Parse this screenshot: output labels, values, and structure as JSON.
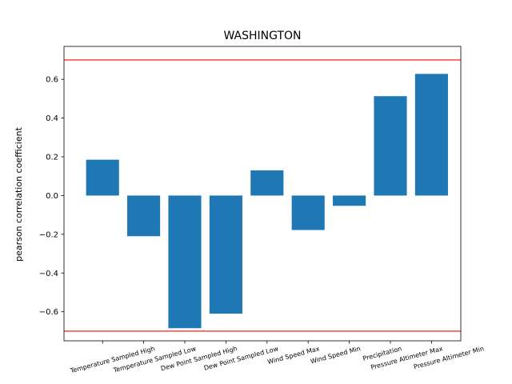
{
  "chart_data": {
    "type": "bar",
    "title": "WASHINGTON",
    "xlabel": "",
    "ylabel": "pearson correlation coefficient",
    "categories": [
      "Temperature Sampled High",
      "Temperature Sampled Low",
      "Dew Point Sampled High",
      "Dew Point Sampled Low",
      "Wind Speed Max",
      "Wind Speed Min",
      "Precipitation",
      "Pressure Altimeter Max",
      "Pressure Altimeter Min"
    ],
    "values": [
      0.185,
      -0.21,
      -0.685,
      -0.61,
      0.13,
      -0.178,
      -0.053,
      0.513,
      0.628
    ],
    "ylim": [
      -0.75,
      0.77
    ],
    "yticks": [
      -0.6,
      -0.4,
      -0.2,
      0.0,
      0.2,
      0.4,
      0.6
    ],
    "ytick_labels": [
      "−0.6",
      "−0.4",
      "−0.2",
      "0.0",
      "0.2",
      "0.4",
      "0.6"
    ],
    "reference_lines": [
      0.7,
      -0.7
    ],
    "bar_color": "#1f77b4",
    "reference_line_color": "#ff0000",
    "grid": false
  }
}
